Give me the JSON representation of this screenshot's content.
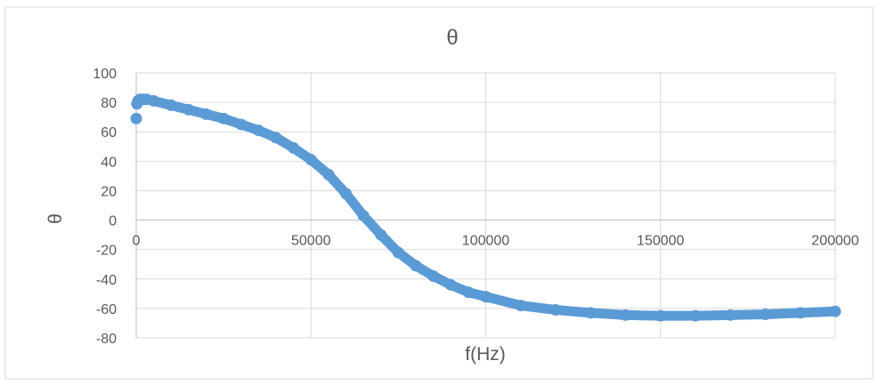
{
  "chart_data": {
    "type": "scatter",
    "title": "θ",
    "xlabel": "f(Hz)",
    "ylabel": "θ",
    "xlim": [
      0,
      200000
    ],
    "ylim": [
      -80,
      100
    ],
    "x_ticks": [
      0,
      50000,
      100000,
      150000,
      200000
    ],
    "y_ticks": [
      100,
      80,
      60,
      40,
      20,
      0,
      -20,
      -40,
      -60,
      -80
    ],
    "x_gridlines": true,
    "y_gridlines": true,
    "legend": "none",
    "series": [
      {
        "color": "#5b9bd5",
        "marker": "circle",
        "x": [
          0,
          200,
          500,
          1000,
          2000,
          3000,
          5000,
          10000,
          15000,
          20000,
          25000,
          30000,
          35000,
          40000,
          45000,
          50000,
          55000,
          60000,
          65000,
          70000,
          75000,
          80000,
          85000,
          90000,
          95000,
          100000,
          110000,
          120000,
          130000,
          140000,
          150000,
          160000,
          170000,
          180000,
          190000,
          200000
        ],
        "y": [
          69,
          79,
          81,
          82,
          82,
          82,
          81,
          78,
          75,
          72,
          69,
          65,
          61,
          56,
          49,
          41,
          31,
          18,
          3,
          -10,
          -22,
          -31,
          -38,
          -44,
          -49,
          -52,
          -58,
          -61,
          -63,
          -64.5,
          -65,
          -65,
          -64.5,
          -64,
          -63,
          -62
        ]
      }
    ]
  }
}
